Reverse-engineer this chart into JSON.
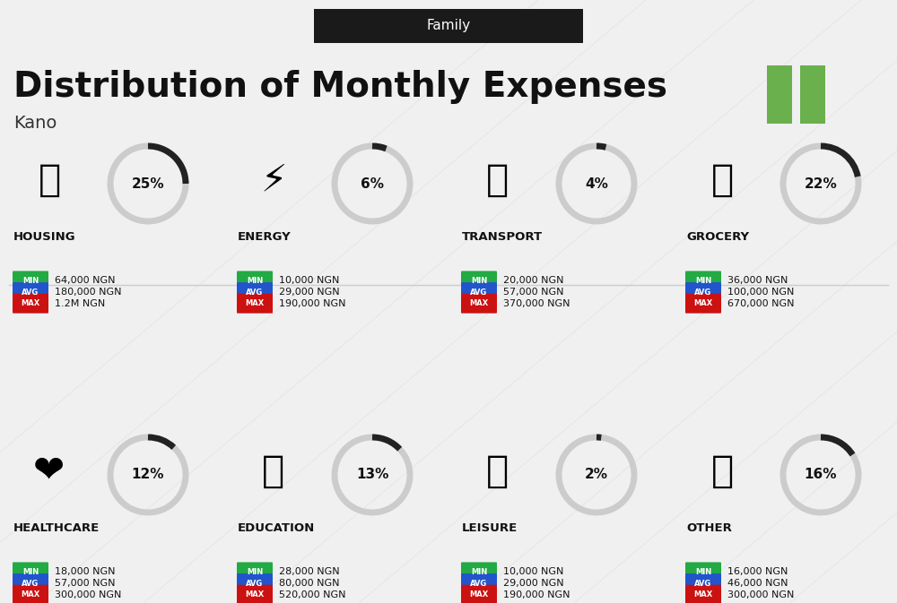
{
  "title": "Distribution of Monthly Expenses",
  "subtitle": "Family",
  "location": "Kano",
  "bg_color": "#f0f0f0",
  "header_bg": "#1a1a1a",
  "header_text_color": "#ffffff",
  "title_color": "#111111",
  "location_color": "#333333",
  "green_color": "#22aa44",
  "blue_color": "#2255cc",
  "red_color": "#cc1111",
  "nigeria_green": "#6ab04c",
  "categories": [
    {
      "name": "HOUSING",
      "pct": 25,
      "min": "64,000 NGN",
      "avg": "180,000 NGN",
      "max": "1.2M NGN",
      "col": 0,
      "row": 0,
      "emoji": "🏢"
    },
    {
      "name": "ENERGY",
      "pct": 6,
      "min": "10,000 NGN",
      "avg": "29,000 NGN",
      "max": "190,000 NGN",
      "col": 1,
      "row": 0,
      "emoji": "⚡"
    },
    {
      "name": "TRANSPORT",
      "pct": 4,
      "min": "20,000 NGN",
      "avg": "57,000 NGN",
      "max": "370,000 NGN",
      "col": 2,
      "row": 0,
      "emoji": "🚌"
    },
    {
      "name": "GROCERY",
      "pct": 22,
      "min": "36,000 NGN",
      "avg": "100,000 NGN",
      "max": "670,000 NGN",
      "col": 3,
      "row": 0,
      "emoji": "🛒"
    },
    {
      "name": "HEALTHCARE",
      "pct": 12,
      "min": "18,000 NGN",
      "avg": "57,000 NGN",
      "max": "300,000 NGN",
      "col": 0,
      "row": 1,
      "emoji": "❤️"
    },
    {
      "name": "EDUCATION",
      "pct": 13,
      "min": "28,000 NGN",
      "avg": "80,000 NGN",
      "max": "520,000 NGN",
      "col": 1,
      "row": 1,
      "emoji": "🎓"
    },
    {
      "name": "LEISURE",
      "pct": 2,
      "min": "10,000 NGN",
      "avg": "29,000 NGN",
      "max": "190,000 NGN",
      "col": 2,
      "row": 1,
      "emoji": "🛍"
    },
    {
      "name": "OTHER",
      "pct": 16,
      "min": "16,000 NGN",
      "avg": "46,000 NGN",
      "max": "300,000 NGN",
      "col": 3,
      "row": 1,
      "emoji": "👜"
    }
  ]
}
